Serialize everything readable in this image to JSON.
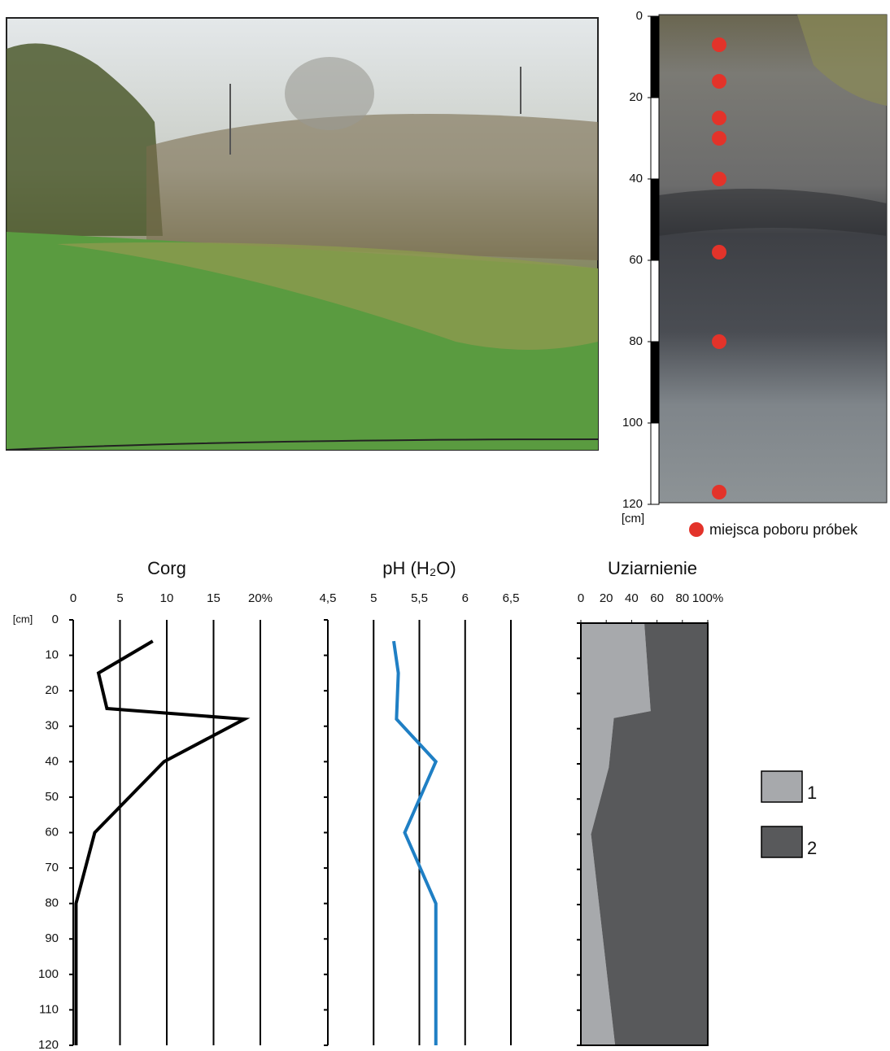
{
  "chart_data": [
    {
      "type": "profile",
      "ylabel": "[cm]",
      "ylim": [
        0,
        120
      ],
      "yticks": [
        0,
        20,
        40,
        60,
        80,
        100,
        120
      ],
      "series": [
        {
          "name": "miejsca poboru próbek",
          "color": "#e3332a",
          "values": [
            7,
            16,
            25,
            30,
            40,
            58,
            80,
            117
          ]
        }
      ]
    },
    {
      "type": "line",
      "title": "Corg",
      "ylabel": "[cm]",
      "xlim": [
        0,
        20
      ],
      "xticks": [
        0,
        5,
        10,
        15,
        {
          "value": 20,
          "label": "20%"
        }
      ],
      "ylim": [
        0,
        120
      ],
      "yticks": [
        0,
        10,
        20,
        30,
        40,
        50,
        60,
        70,
        80,
        90,
        100,
        110,
        120
      ],
      "y": [
        6,
        15,
        25,
        28,
        40,
        60,
        80,
        120
      ],
      "series": [
        {
          "color": "#000000",
          "values": [
            8.5,
            2.7,
            3.6,
            18.3,
            9.7,
            2.3,
            0.3,
            0.3
          ]
        }
      ]
    },
    {
      "type": "line",
      "title": "pH (H₂O)",
      "xlim": [
        4.5,
        6.5
      ],
      "xticks": [
        {
          "value": 4.5,
          "label": "4,5"
        },
        5,
        {
          "value": 5.5,
          "label": "5,5"
        },
        6,
        {
          "value": 6.5,
          "label": "6,5"
        }
      ],
      "ylim": [
        0,
        120
      ],
      "yticks": [
        0,
        10,
        20,
        30,
        40,
        50,
        60,
        70,
        80,
        90,
        100,
        110,
        120
      ],
      "y": [
        6,
        15,
        28,
        40,
        60,
        80,
        120
      ],
      "series": [
        {
          "color": "#1f7fc4",
          "values": [
            5.22,
            5.27,
            5.25,
            5.68,
            5.34,
            5.68,
            5.68
          ]
        }
      ]
    },
    {
      "type": "area",
      "title": "Uziarnienie",
      "xlim": [
        0,
        100
      ],
      "xticks": [
        0,
        20,
        40,
        60,
        80,
        {
          "value": 100,
          "label": "100%"
        }
      ],
      "ylim": [
        0,
        120
      ],
      "yticks": [
        0,
        10,
        20,
        30,
        40,
        50,
        60,
        70,
        80,
        90,
        100,
        110,
        120
      ],
      "y": [
        0,
        25,
        27,
        41,
        60,
        120
      ],
      "series": [
        {
          "name": "1",
          "color": "#a7a9ac",
          "values": [
            50,
            55,
            26,
            22,
            8,
            27
          ]
        },
        {
          "name": "2",
          "color": "#58595b",
          "values": [
            50,
            45,
            74,
            78,
            92,
            73
          ]
        }
      ]
    }
  ]
}
